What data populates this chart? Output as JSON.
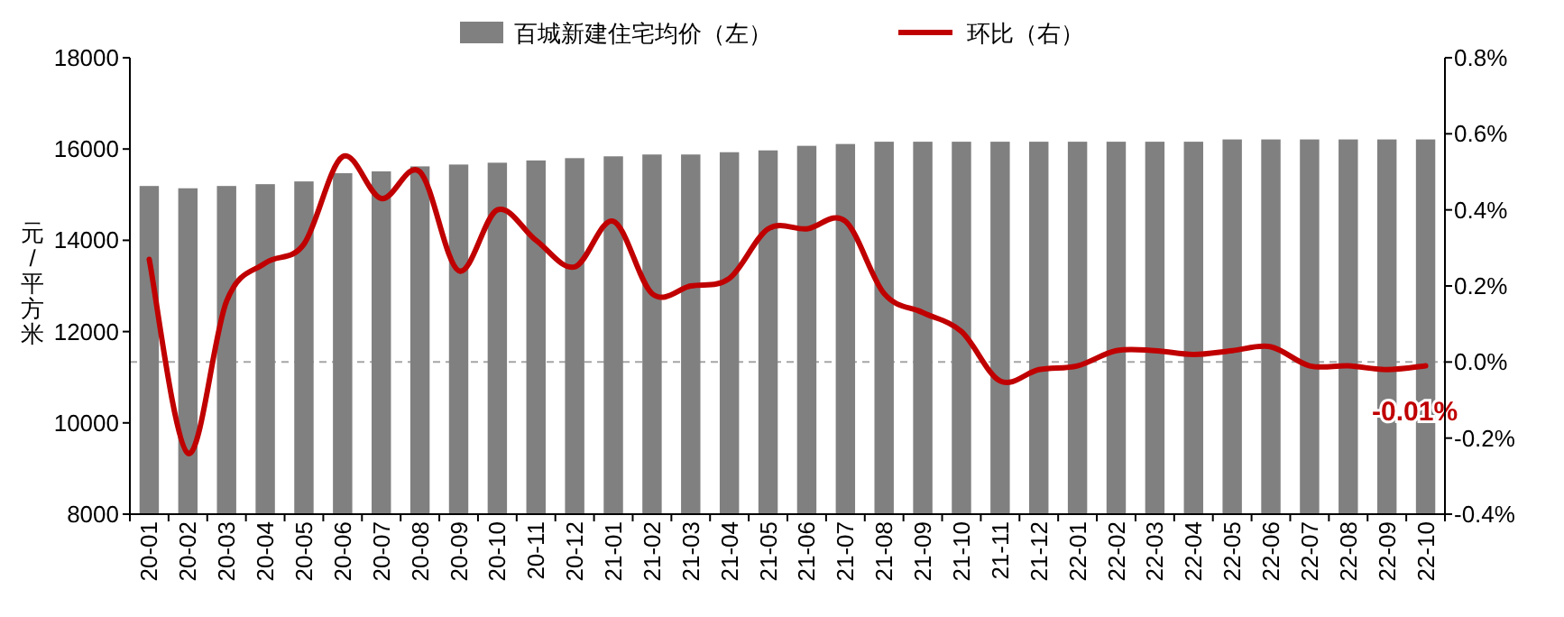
{
  "chart_data": {
    "type": "bar",
    "ylabel": "元/平方米",
    "categories": [
      "20-01",
      "20-02",
      "20-03",
      "20-04",
      "20-05",
      "20-06",
      "20-07",
      "20-08",
      "20-09",
      "20-10",
      "20-11",
      "20-12",
      "21-01",
      "21-02",
      "21-03",
      "21-04",
      "21-05",
      "21-06",
      "21-07",
      "21-08",
      "21-09",
      "21-10",
      "21-11",
      "21-12",
      "22-01",
      "22-02",
      "22-03",
      "22-04",
      "22-05",
      "22-06",
      "22-07",
      "22-08",
      "22-09",
      "22-10"
    ],
    "series": [
      {
        "name": "百城新建住宅均价（左）",
        "color": "#808080",
        "values": [
          15190,
          15140,
          15190,
          15230,
          15290,
          15470,
          15510,
          15620,
          15660,
          15700,
          15750,
          15800,
          15840,
          15880,
          15880,
          15930,
          15970,
          16070,
          16110,
          16160,
          16160,
          16160,
          16160,
          16160,
          16160,
          16160,
          16160,
          16160,
          16210,
          16210,
          16210,
          16210,
          16210,
          16210
        ]
      },
      {
        "name": "环比（右）",
        "type": "line",
        "axis": "y2",
        "color": "#c00000",
        "values": [
          0.27,
          -0.24,
          0.16,
          0.26,
          0.31,
          0.54,
          0.43,
          0.5,
          0.24,
          0.4,
          0.32,
          0.25,
          0.37,
          0.18,
          0.2,
          0.22,
          0.35,
          0.35,
          0.37,
          0.18,
          0.13,
          0.08,
          -0.05,
          -0.02,
          -0.01,
          0.03,
          0.03,
          0.02,
          0.03,
          0.04,
          -0.01,
          -0.01,
          -0.02,
          -0.01
        ],
        "value_labels": [
          null,
          null,
          null,
          null,
          null,
          null,
          null,
          null,
          null,
          null,
          null,
          null,
          null,
          null,
          null,
          null,
          null,
          null,
          null,
          null,
          null,
          null,
          null,
          null,
          null,
          null,
          null,
          null,
          null,
          null,
          null,
          null,
          null,
          "-0.01%"
        ]
      }
    ],
    "ylim": [
      8000,
      18000
    ],
    "yticks": [
      8000,
      10000,
      12000,
      14000,
      16000,
      18000
    ],
    "y2lim": [
      -0.4,
      0.8
    ],
    "y2ticks": [
      {
        "value": -0.4,
        "label": "-0.4%"
      },
      {
        "value": -0.2,
        "label": "-0.2%"
      },
      {
        "value": 0,
        "label": "0.0%"
      },
      {
        "value": 0.2,
        "label": "0.2%"
      },
      {
        "value": 0.4,
        "label": "0.4%"
      },
      {
        "value": 0.6,
        "label": "0.6%"
      },
      {
        "value": 0.8,
        "label": "0.8%"
      }
    ],
    "ref_lines": [
      {
        "axis": "y2",
        "value": 0,
        "color": "#a6a6a6",
        "line_style": "dashed"
      }
    ],
    "legend": "top",
    "grid": false,
    "marker": "none"
  }
}
